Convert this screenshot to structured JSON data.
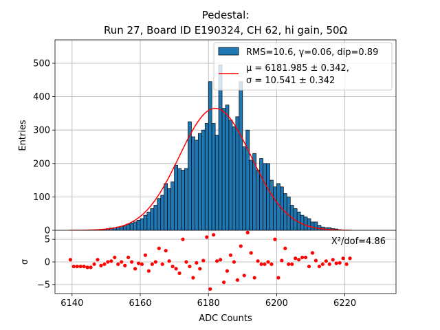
{
  "title_lines": [
    "Pedestal:",
    "Run 27, Board ID E190324, CH 62, hi gain, 50Ω"
  ],
  "colors": {
    "bar": "#1f77b4",
    "fit": "#ff0000",
    "residual": "#ff0000",
    "grid": "#b0b0b0"
  },
  "chart_data": [
    {
      "type": "bar",
      "subtype": "histogram",
      "xlabel": "",
      "ylabel": "Entries",
      "xlim": [
        6135,
        6235
      ],
      "ylim": [
        0,
        570
      ],
      "xticks": [
        6140,
        6160,
        6180,
        6200,
        6220
      ],
      "yticks": [
        0,
        100,
        200,
        300,
        400,
        500
      ],
      "grid": true,
      "bin_start": 6139,
      "bin_width": 1,
      "values": [
        0,
        0,
        0,
        0,
        0,
        0,
        0,
        0,
        1,
        2,
        3,
        5,
        7,
        8,
        10,
        12,
        13,
        18,
        22,
        25,
        30,
        35,
        45,
        55,
        65,
        75,
        95,
        105,
        140,
        125,
        145,
        195,
        185,
        180,
        185,
        325,
        280,
        270,
        290,
        300,
        320,
        445,
        320,
        285,
        495,
        365,
        375,
        330,
        310,
        340,
        445,
        250,
        300,
        210,
        230,
        180,
        215,
        200,
        200,
        150,
        130,
        140,
        130,
        110,
        100,
        75,
        65,
        55,
        45,
        40,
        35,
        25,
        25,
        15,
        10,
        8,
        8,
        5,
        4,
        2,
        1,
        1,
        0
      ],
      "series": [
        {
          "name": "RMS=10.6, γ=0.06, dip=0.89",
          "kind": "histogram"
        },
        {
          "name": "μ = 6181.985 ± 0.342,",
          "name_line2": "σ = 10.541 ± 0.342",
          "kind": "gaussian_fit",
          "mu": 6181.985,
          "sigma": 10.541,
          "amplitude": 365
        }
      ],
      "legend_position": "top-right"
    },
    {
      "type": "scatter",
      "xlabel": "ADC Counts",
      "ylabel": "σ",
      "xlim": [
        6135,
        6235
      ],
      "ylim": [
        -7,
        7
      ],
      "xticks": [
        6140,
        6160,
        6180,
        6200,
        6220
      ],
      "yticks": [
        -5,
        0,
        5
      ],
      "grid": true,
      "annotation": "X²/dof=4.86",
      "x": [
        6139,
        6140,
        6141,
        6142,
        6143,
        6144,
        6145,
        6146,
        6147,
        6148,
        6149,
        6150,
        6151,
        6152,
        6153,
        6154,
        6155,
        6156,
        6157,
        6158,
        6159,
        6160,
        6161,
        6162,
        6163,
        6164,
        6165,
        6166,
        6167,
        6168,
        6169,
        6170,
        6171,
        6172,
        6173,
        6174,
        6175,
        6176,
        6177,
        6178,
        6179,
        6180,
        6181,
        6182,
        6183,
        6184,
        6185,
        6186,
        6187,
        6188,
        6189,
        6190,
        6191,
        6192,
        6193,
        6194,
        6195,
        6196,
        6197,
        6198,
        6199,
        6200,
        6201,
        6202,
        6203,
        6204,
        6205,
        6206,
        6207,
        6208,
        6209,
        6210,
        6211,
        6212,
        6213,
        6214,
        6215,
        6216,
        6217,
        6218,
        6219,
        6220,
        6221
      ],
      "y": [
        0.5,
        -1,
        -1,
        -1,
        -1,
        -1.2,
        -1.2,
        -0.5,
        0.5,
        -0.8,
        -0.5,
        0,
        0.2,
        1,
        -0.5,
        0,
        -0.8,
        1,
        0,
        -1.5,
        -0.3,
        -0.5,
        1.5,
        -2,
        -0.5,
        0,
        3,
        -0.5,
        2.5,
        0.2,
        -1,
        -1.5,
        -2.5,
        5,
        0,
        -1,
        -3.5,
        -0.2,
        -1.5,
        0.3,
        5.5,
        -6,
        6,
        0.2,
        0.5,
        -4.5,
        -2,
        1.5,
        0,
        -4,
        3.5,
        -3,
        6.5,
        2,
        -3.5,
        0.2,
        -0.5,
        -0.5,
        0,
        -0.5,
        5,
        -3.5,
        0.3,
        3,
        -0.5,
        -0.5,
        0.8,
        0.5,
        1,
        1,
        -1,
        2,
        0.3,
        -1,
        -0.5,
        0.2,
        -0.5,
        0.5,
        -0.3,
        -0.2,
        0.8,
        -0.5,
        0.8
      ]
    }
  ]
}
